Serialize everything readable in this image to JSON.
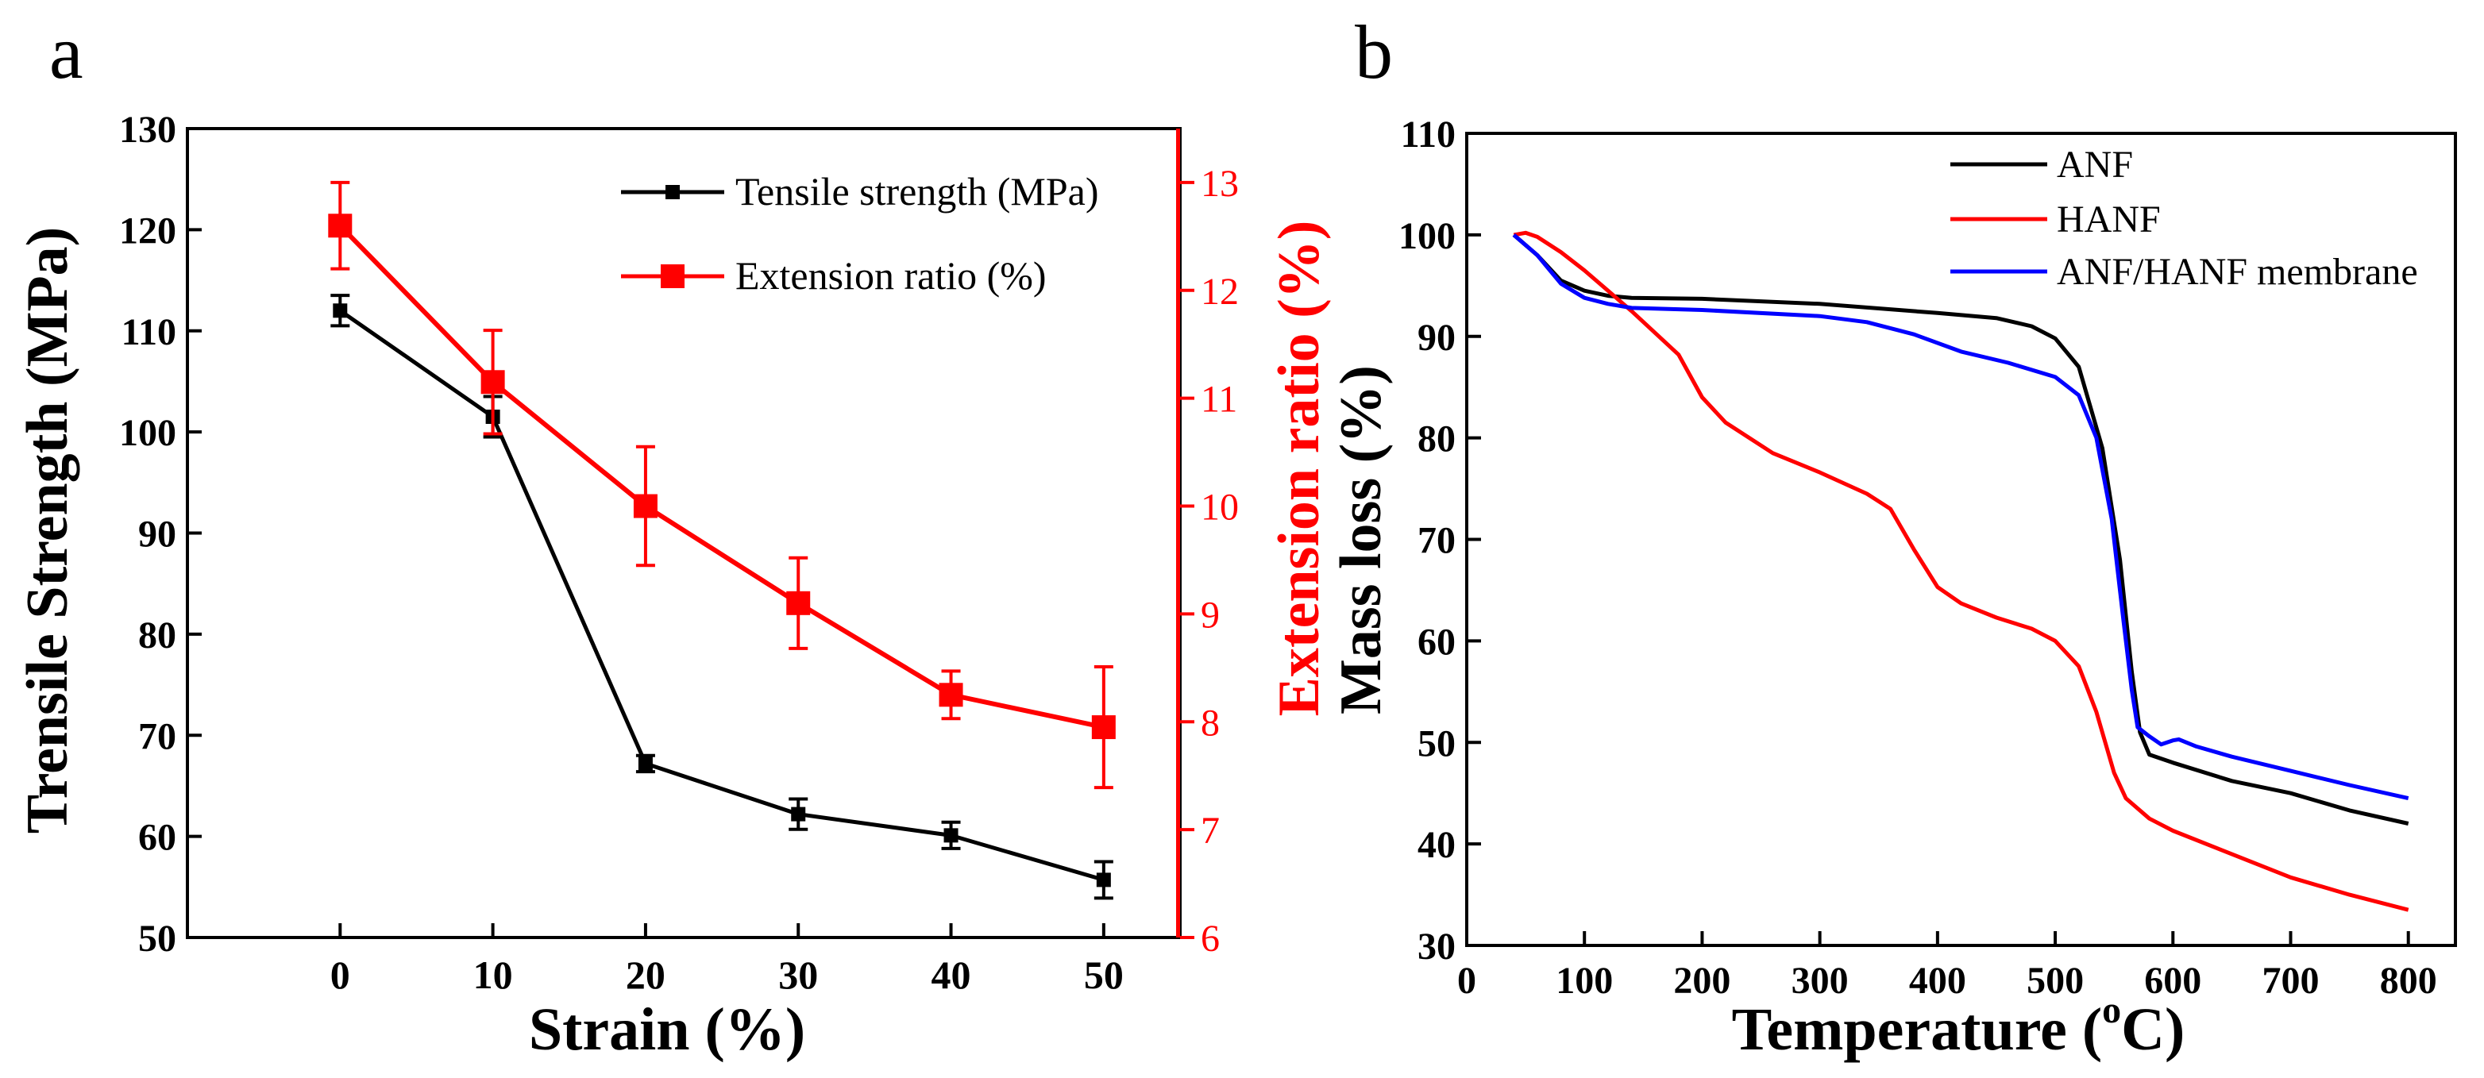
{
  "panels": {
    "a": "a",
    "b": "b"
  },
  "colors": {
    "black": "#000000",
    "red": "#ff0000",
    "blue": "#0000ff"
  },
  "chart_data": [
    {
      "type": "line",
      "panel_label": "a",
      "xlabel": "Strain (%)",
      "ylabel": "Trensile Strength (MPa)",
      "y2label": "Extension ratio (%)",
      "xlim": [
        -10,
        55
      ],
      "ylim": [
        50,
        130
      ],
      "y2lim": [
        6,
        13.5
      ],
      "xticks": [
        0,
        10,
        20,
        30,
        40,
        50
      ],
      "yticks": [
        50,
        60,
        70,
        80,
        90,
        100,
        110,
        120,
        130
      ],
      "y2ticks": [
        6,
        7,
        8,
        9,
        10,
        11,
        12,
        13
      ],
      "legend": "top-right",
      "series": [
        {
          "name": "Tensile strength (MPa)",
          "axis": "left",
          "color": "#000000",
          "marker": "square-small",
          "x": [
            0,
            10,
            20,
            30,
            40,
            50
          ],
          "y": [
            112,
            101.5,
            67.2,
            62.2,
            60.1,
            55.7
          ],
          "err": [
            1.5,
            2.0,
            0.8,
            1.5,
            1.3,
            1.8
          ]
        },
        {
          "name": "Extension ratio (%)",
          "axis": "right",
          "color": "#ff0000",
          "marker": "square-large",
          "x": [
            0,
            10,
            20,
            30,
            40,
            50
          ],
          "y": [
            12.6,
            11.15,
            10.0,
            9.1,
            8.25,
            7.95
          ],
          "err": [
            0.4,
            0.48,
            0.55,
            0.42,
            0.22,
            0.56
          ]
        }
      ]
    },
    {
      "type": "line",
      "panel_label": "b",
      "xlabel_main": "Temperature (",
      "xlabel_sup": "o",
      "xlabel_end": "C)",
      "ylabel": "Mass loss (%)",
      "xlim": [
        0,
        840
      ],
      "ylim": [
        30,
        110
      ],
      "xticks": [
        0,
        100,
        200,
        300,
        400,
        500,
        600,
        700,
        800
      ],
      "yticks": [
        30,
        40,
        50,
        60,
        70,
        80,
        90,
        100,
        110
      ],
      "legend": "top-right",
      "series": [
        {
          "name": "ANF",
          "color": "#000000",
          "x": [
            40,
            60,
            80,
            100,
            120,
            140,
            200,
            300,
            400,
            450,
            480,
            500,
            520,
            540,
            555,
            565,
            572,
            580,
            600,
            650,
            700,
            750,
            800
          ],
          "y": [
            100,
            98,
            95.5,
            94.5,
            94,
            93.8,
            93.7,
            93.2,
            92.3,
            91.8,
            91,
            89.8,
            87,
            79,
            68,
            57,
            51,
            48.8,
            48,
            46.2,
            45,
            43.3,
            42
          ]
        },
        {
          "name": "HANF",
          "color": "#ff0000",
          "x": [
            40,
            50,
            60,
            80,
            100,
            140,
            180,
            200,
            220,
            260,
            300,
            340,
            360,
            380,
            400,
            420,
            450,
            480,
            500,
            520,
            535,
            550,
            560,
            580,
            600,
            650,
            700,
            750,
            800
          ],
          "y": [
            100,
            100.2,
            99.8,
            98.3,
            96.5,
            92.5,
            88.2,
            84,
            81.5,
            78.5,
            76.6,
            74.5,
            73,
            69,
            65.3,
            63.7,
            62.3,
            61.2,
            60,
            57.5,
            53,
            47,
            44.5,
            42.5,
            41.3,
            39,
            36.7,
            35,
            33.5
          ]
        },
        {
          "name": "ANF/HANF membrane",
          "color": "#0000ff",
          "x": [
            40,
            60,
            80,
            100,
            120,
            140,
            200,
            300,
            340,
            380,
            420,
            460,
            500,
            520,
            535,
            548,
            558,
            565,
            570,
            580,
            590,
            600,
            605,
            620,
            650,
            700,
            750,
            800
          ],
          "y": [
            100,
            98,
            95.2,
            93.8,
            93.2,
            92.8,
            92.6,
            92,
            91.4,
            90.2,
            88.5,
            87.4,
            86,
            84.2,
            80,
            72,
            62,
            55.2,
            51.5,
            50.6,
            49.8,
            50.2,
            50.3,
            49.6,
            48.6,
            47.2,
            45.8,
            44.5
          ]
        }
      ]
    }
  ]
}
